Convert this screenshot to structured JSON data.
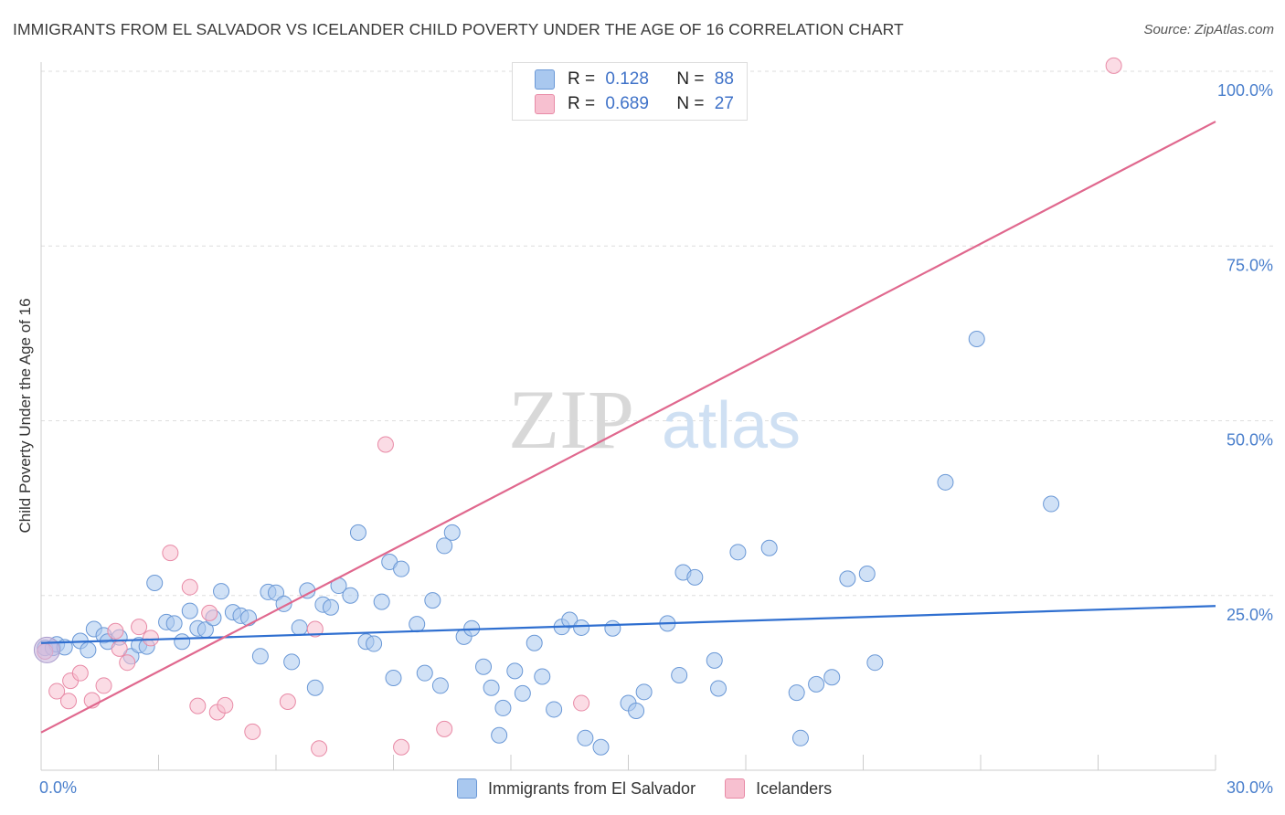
{
  "header": {
    "title": "IMMIGRANTS FROM EL SALVADOR VS ICELANDER CHILD POVERTY UNDER THE AGE OF 16 CORRELATION CHART",
    "source": "Source: ZipAtlas.com"
  },
  "legend": {
    "rows": [
      {
        "r_label": "R =",
        "r_value": "0.128",
        "n_label": "N =",
        "n_value": "88"
      },
      {
        "r_label": "R =",
        "r_value": "0.689",
        "n_label": "N =",
        "n_value": "27"
      }
    ]
  },
  "bottom_legend": {
    "series_a": "Immigrants from El Salvador",
    "series_b": "Icelanders"
  },
  "colors": {
    "blue_fill": "#a9c8ef",
    "blue_stroke": "#6a98d6",
    "blue_line": "#2f6fd0",
    "pink_fill": "#f7c0d0",
    "pink_stroke": "#e88aa6",
    "pink_line": "#e0688e",
    "tick_text": "#4a7fcc"
  },
  "chart_data": {
    "type": "scatter",
    "title": "IMMIGRANTS FROM EL SALVADOR VS ICELANDER CHILD POVERTY UNDER THE AGE OF 16 CORRELATION CHART",
    "xlabel": "",
    "ylabel": "Child Poverty Under the Age of 16",
    "xlim": [
      0,
      30
    ],
    "ylim": [
      0,
      102
    ],
    "x_tick_labels": [
      "0.0%",
      "30.0%"
    ],
    "y_ticks": [
      {
        "value": 25,
        "label": "25.0%"
      },
      {
        "value": 50,
        "label": "50.0%"
      },
      {
        "value": 75,
        "label": "75.0%"
      },
      {
        "value": 100,
        "label": "100.0%"
      }
    ],
    "watermark": {
      "zip": "ZIP",
      "atlas": "atlas"
    },
    "series": [
      {
        "name": "Immigrants from El Salvador",
        "R": 0.128,
        "N": 88,
        "trend": {
          "x": [
            0,
            30
          ],
          "y": [
            18.2,
            23.5
          ]
        },
        "points": [
          [
            0.1,
            17.5
          ],
          [
            0.3,
            17.5
          ],
          [
            0.4,
            18
          ],
          [
            0.6,
            17.6
          ],
          [
            1.0,
            18.5
          ],
          [
            1.2,
            17.2
          ],
          [
            1.35,
            20.2
          ],
          [
            1.6,
            19.3
          ],
          [
            1.7,
            18.4
          ],
          [
            2.0,
            19.0
          ],
          [
            2.3,
            16.3
          ],
          [
            2.5,
            17.9
          ],
          [
            2.7,
            17.7
          ],
          [
            2.9,
            26.8
          ],
          [
            3.2,
            21.2
          ],
          [
            3.4,
            21.0
          ],
          [
            3.6,
            18.4
          ],
          [
            3.8,
            22.8
          ],
          [
            4.0,
            20.3
          ],
          [
            4.2,
            20.1
          ],
          [
            4.4,
            21.8
          ],
          [
            4.6,
            25.6
          ],
          [
            4.9,
            22.6
          ],
          [
            5.1,
            22.1
          ],
          [
            5.3,
            21.8
          ],
          [
            5.6,
            16.3
          ],
          [
            5.8,
            25.5
          ],
          [
            6.0,
            25.4
          ],
          [
            6.2,
            23.8
          ],
          [
            6.4,
            15.5
          ],
          [
            6.6,
            20.4
          ],
          [
            6.8,
            25.7
          ],
          [
            7.0,
            11.8
          ],
          [
            7.2,
            23.7
          ],
          [
            7.4,
            23.3
          ],
          [
            7.6,
            26.4
          ],
          [
            7.9,
            25.0
          ],
          [
            8.1,
            34.0
          ],
          [
            8.3,
            18.4
          ],
          [
            8.5,
            18.1
          ],
          [
            8.7,
            24.1
          ],
          [
            8.9,
            29.8
          ],
          [
            9.0,
            13.2
          ],
          [
            9.2,
            28.8
          ],
          [
            9.6,
            20.9
          ],
          [
            9.8,
            13.9
          ],
          [
            10.0,
            24.3
          ],
          [
            10.2,
            12.1
          ],
          [
            10.3,
            32.1
          ],
          [
            10.5,
            34.0
          ],
          [
            10.8,
            19.1
          ],
          [
            11.0,
            20.3
          ],
          [
            11.3,
            14.8
          ],
          [
            11.5,
            11.8
          ],
          [
            11.7,
            5.0
          ],
          [
            11.8,
            8.9
          ],
          [
            12.1,
            14.2
          ],
          [
            12.3,
            11.0
          ],
          [
            12.6,
            18.2
          ],
          [
            12.8,
            13.4
          ],
          [
            13.1,
            8.7
          ],
          [
            13.3,
            20.5
          ],
          [
            13.5,
            21.5
          ],
          [
            13.8,
            20.4
          ],
          [
            13.9,
            4.6
          ],
          [
            14.3,
            3.3
          ],
          [
            14.6,
            20.3
          ],
          [
            15.0,
            9.6
          ],
          [
            15.2,
            8.5
          ],
          [
            15.4,
            11.2
          ],
          [
            16.0,
            21.0
          ],
          [
            16.3,
            13.6
          ],
          [
            16.4,
            28.3
          ],
          [
            16.7,
            27.6
          ],
          [
            17.2,
            15.7
          ],
          [
            17.3,
            11.7
          ],
          [
            17.8,
            31.2
          ],
          [
            18.6,
            31.8
          ],
          [
            19.3,
            11.1
          ],
          [
            19.4,
            4.6
          ],
          [
            19.8,
            12.3
          ],
          [
            20.2,
            13.3
          ],
          [
            20.6,
            27.4
          ],
          [
            21.1,
            28.1
          ],
          [
            21.3,
            15.4
          ],
          [
            23.1,
            41.2
          ],
          [
            23.9,
            61.7
          ],
          [
            25.8,
            38.1
          ]
        ]
      },
      {
        "name": "Icelanders",
        "R": 0.689,
        "N": 27,
        "trend": {
          "x": [
            0,
            30
          ],
          "y": [
            5.4,
            92.8
          ]
        },
        "points": [
          [
            0.1,
            17.0
          ],
          [
            0.4,
            11.3
          ],
          [
            0.75,
            12.8
          ],
          [
            1.0,
            13.9
          ],
          [
            1.3,
            10.0
          ],
          [
            1.6,
            12.1
          ],
          [
            1.9,
            19.9
          ],
          [
            2.2,
            15.4
          ],
          [
            2.5,
            20.5
          ],
          [
            2.8,
            18.9
          ],
          [
            3.3,
            31.1
          ],
          [
            3.8,
            26.2
          ],
          [
            4.0,
            9.2
          ],
          [
            4.3,
            22.5
          ],
          [
            4.5,
            8.3
          ],
          [
            4.7,
            9.3
          ],
          [
            5.4,
            5.5
          ],
          [
            6.3,
            9.8
          ],
          [
            7.0,
            20.2
          ],
          [
            7.1,
            3.1
          ],
          [
            8.8,
            46.6
          ],
          [
            9.2,
            3.3
          ],
          [
            10.3,
            5.9
          ],
          [
            13.8,
            9.6
          ],
          [
            27.4,
            100.8
          ],
          [
            0.7,
            9.9
          ],
          [
            2.0,
            17.4
          ]
        ]
      }
    ]
  }
}
